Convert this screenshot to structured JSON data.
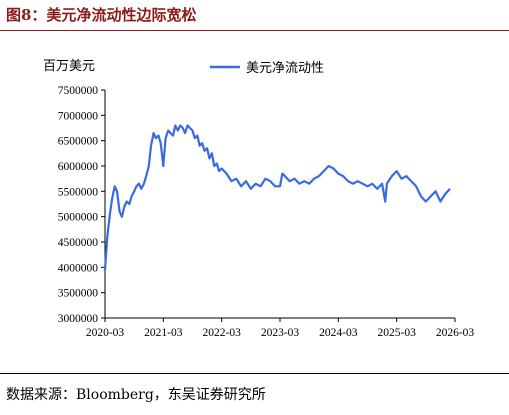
{
  "figure_title": "图8：美元净流动性边际宽松",
  "source_text": "数据来源：Bloomberg，东吴证券研究所",
  "chart_data": {
    "type": "line",
    "title": "",
    "unit_label": "百万美元",
    "ylim": [
      3000000,
      7500000
    ],
    "yticks": [
      3000000,
      3500000,
      4000000,
      4500000,
      5000000,
      5500000,
      6000000,
      6500000,
      7000000,
      7500000
    ],
    "ytick_labels": [
      "3000000",
      "3500000",
      "4000000",
      "4500000",
      "5000000",
      "5500000",
      "6000000",
      "6500000",
      "7000000",
      "7500000"
    ],
    "xlim": [
      "2020-03",
      "2026-03"
    ],
    "xtick_labels": [
      "2020-03",
      "2021-03",
      "2022-03",
      "2023-03",
      "2024-03",
      "2025-03",
      "2026-03"
    ],
    "legend_position": "top",
    "color": "#3a6ae0",
    "series": [
      {
        "name": "美元净流动性",
        "x": [
          "2020-03-01",
          "2020-03-15",
          "2020-04-01",
          "2020-04-15",
          "2020-05-01",
          "2020-05-15",
          "2020-06-01",
          "2020-06-15",
          "2020-07-01",
          "2020-07-15",
          "2020-08-01",
          "2020-08-15",
          "2020-09-01",
          "2020-09-15",
          "2020-10-01",
          "2020-10-15",
          "2020-11-01",
          "2020-11-15",
          "2020-12-01",
          "2020-12-15",
          "2021-01-01",
          "2021-01-15",
          "2021-02-01",
          "2021-02-15",
          "2021-03-01",
          "2021-03-15",
          "2021-04-01",
          "2021-04-15",
          "2021-05-01",
          "2021-05-15",
          "2021-06-01",
          "2021-06-15",
          "2021-07-01",
          "2021-07-15",
          "2021-08-01",
          "2021-08-15",
          "2021-09-01",
          "2021-09-15",
          "2021-10-01",
          "2021-10-15",
          "2021-11-01",
          "2021-11-15",
          "2021-12-01",
          "2021-12-15",
          "2022-01-01",
          "2022-01-15",
          "2022-02-01",
          "2022-02-15",
          "2022-03-01",
          "2022-04-01",
          "2022-05-01",
          "2022-06-01",
          "2022-07-01",
          "2022-08-01",
          "2022-09-01",
          "2022-10-01",
          "2022-11-01",
          "2022-12-01",
          "2023-01-01",
          "2023-02-01",
          "2023-03-01",
          "2023-03-15",
          "2023-04-01",
          "2023-05-01",
          "2023-06-01",
          "2023-07-01",
          "2023-08-01",
          "2023-09-01",
          "2023-10-01",
          "2023-11-01",
          "2023-12-01",
          "2024-01-01",
          "2024-02-01",
          "2024-03-01",
          "2024-04-01",
          "2024-05-01",
          "2024-06-01",
          "2024-07-01",
          "2024-08-01",
          "2024-09-01",
          "2024-10-01",
          "2024-11-01",
          "2024-12-01",
          "2024-12-20",
          "2025-01-01",
          "2025-02-01",
          "2025-03-01",
          "2025-04-01",
          "2025-05-01",
          "2025-06-01",
          "2025-07-01",
          "2025-08-01",
          "2025-09-01",
          "2025-10-01",
          "2025-11-01",
          "2025-12-01",
          "2026-01-01",
          "2026-02-01"
        ],
        "values": [
          3950000,
          4600000,
          5050000,
          5350000,
          5600000,
          5500000,
          5100000,
          5000000,
          5200000,
          5300000,
          5250000,
          5400000,
          5500000,
          5600000,
          5650000,
          5550000,
          5650000,
          5800000,
          6000000,
          6400000,
          6650000,
          6550000,
          6600000,
          6450000,
          6000000,
          6550000,
          6700000,
          6650000,
          6600000,
          6800000,
          6700000,
          6800000,
          6750000,
          6650000,
          6800000,
          6750000,
          6700000,
          6550000,
          6600000,
          6400000,
          6450000,
          6300000,
          6350000,
          6150000,
          6250000,
          6000000,
          6050000,
          5900000,
          5950000,
          5850000,
          5700000,
          5750000,
          5600000,
          5700000,
          5550000,
          5650000,
          5600000,
          5750000,
          5700000,
          5600000,
          5600000,
          5850000,
          5800000,
          5700000,
          5750000,
          5650000,
          5700000,
          5650000,
          5750000,
          5800000,
          5900000,
          6000000,
          5950000,
          5850000,
          5800000,
          5700000,
          5650000,
          5700000,
          5650000,
          5600000,
          5650000,
          5550000,
          5650000,
          5300000,
          5650000,
          5800000,
          5900000,
          5750000,
          5800000,
          5700000,
          5600000,
          5400000,
          5300000,
          5400000,
          5500000,
          5300000,
          5450000,
          5550000
        ]
      }
    ]
  }
}
